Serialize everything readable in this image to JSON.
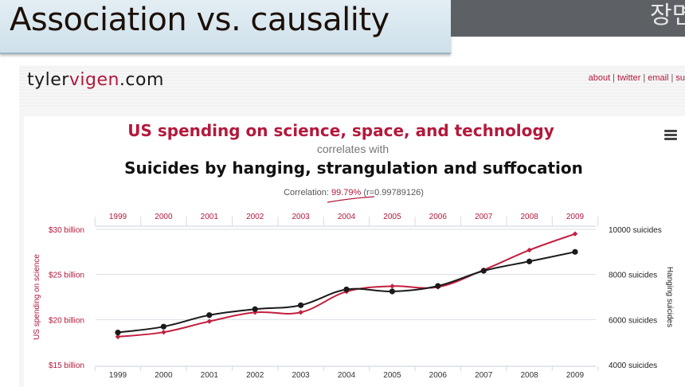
{
  "slide": {
    "title": "Association vs. causality",
    "corner_text": "장면"
  },
  "site": {
    "logo_part1": "tyler",
    "logo_part2": "vigen",
    "logo_part3": ".com",
    "links": [
      "about",
      "twitter",
      "email",
      "su"
    ]
  },
  "chart_header": {
    "title1": "US spending on science, space, and technology",
    "title2": "correlates with",
    "title3": "Suicides by hanging, strangulation and suffocation",
    "corr_prefix": "Correlation: ",
    "corr_pct": "99.79%",
    "corr_r": " (r=0.99789126)"
  },
  "colors": {
    "series1": "#c2203f",
    "series2": "#1a1a1a",
    "accent": "#b3193b"
  },
  "chart_data": {
    "type": "line",
    "x": [
      1999,
      2000,
      2001,
      2002,
      2003,
      2004,
      2005,
      2006,
      2007,
      2008,
      2009
    ],
    "series": [
      {
        "name": "US spending on science",
        "axis": "left",
        "values": [
          18.1,
          18.6,
          19.8,
          20.8,
          20.8,
          23.1,
          23.7,
          23.6,
          25.5,
          27.7,
          29.5
        ]
      },
      {
        "name": "Hanging suicides",
        "axis": "right",
        "values": [
          5427,
          5688,
          6198,
          6462,
          6635,
          7336,
          7248,
          7491,
          8161,
          8578,
          9000
        ]
      }
    ],
    "left_axis": {
      "label": "US spending on science",
      "ticks": [
        "$15 billion",
        "$20 billion",
        "$25 billion",
        "$30 billion"
      ],
      "tick_values": [
        15,
        20,
        25,
        30
      ],
      "range": [
        15,
        30
      ]
    },
    "right_axis": {
      "label": "Hanging suicides",
      "ticks": [
        "4000 suicides",
        "6000 suicides",
        "8000 suicides",
        "10000 suicides"
      ],
      "tick_values": [
        4000,
        6000,
        8000,
        10000
      ],
      "range": [
        4000,
        10000
      ]
    },
    "grid": true
  }
}
